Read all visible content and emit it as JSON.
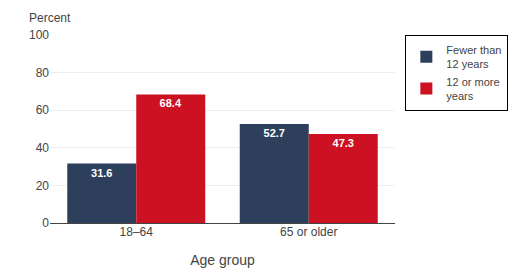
{
  "chart_data": {
    "type": "bar",
    "categories": [
      "18–64",
      "65 or older"
    ],
    "series": [
      {
        "name": "Fewer than\n12 years",
        "color": "#2e3f5c",
        "values": [
          31.6,
          52.7
        ]
      },
      {
        "name": "12 or more\nyears",
        "color": "#cc1122",
        "values": [
          68.4,
          47.3
        ]
      }
    ],
    "xlabel": "Age group",
    "ylabel": "Percent",
    "ylim": [
      0,
      100
    ],
    "yticks": [
      0,
      20,
      40,
      60,
      80,
      100
    ],
    "grid": true,
    "legend": "upper right",
    "data_labels": true
  }
}
